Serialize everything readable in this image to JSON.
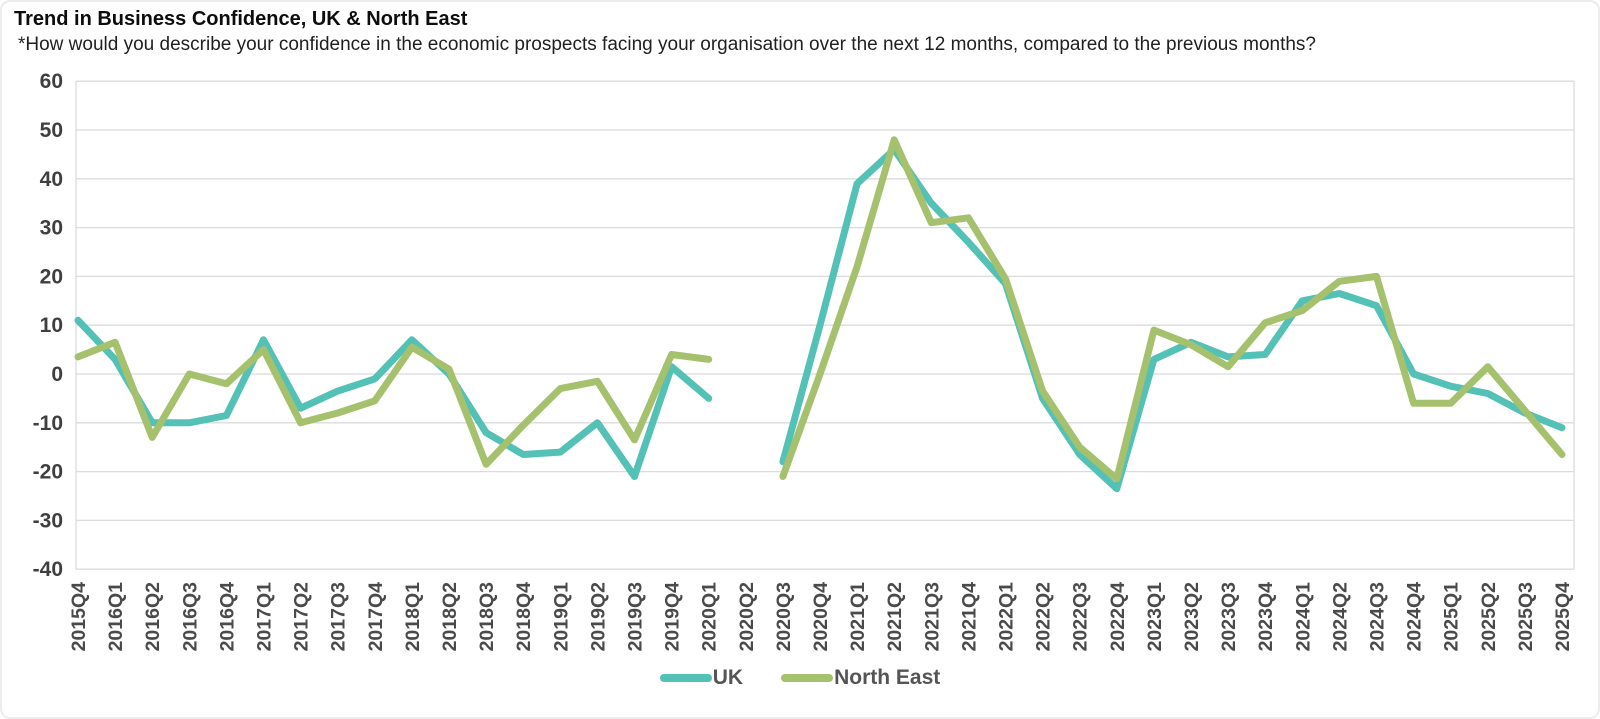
{
  "header": {
    "title": "Trend in Business Confidence, UK & North East",
    "subtitle": "*How would you describe your confidence in the economic prospects facing your organisation over the next 12 months, compared to the previous months?"
  },
  "chart_data": {
    "type": "line",
    "title": "Trend in Business Confidence, UK & North East",
    "xlabel": "",
    "ylabel": "",
    "ylim": [
      -40,
      60
    ],
    "yticks": [
      60,
      50,
      40,
      30,
      20,
      10,
      0,
      -10,
      -20,
      -30,
      -40
    ],
    "grid": true,
    "legend_position": "bottom",
    "categories": [
      "2015Q4",
      "2016Q1",
      "2016Q2",
      "2016Q3",
      "2016Q4",
      "2017Q1",
      "2017Q2",
      "2017Q3",
      "2017Q4",
      "2018Q1",
      "2018Q2",
      "2018Q3",
      "2018Q4",
      "2019Q1",
      "2019Q2",
      "2019Q3",
      "2019Q4",
      "2020Q1",
      "2020Q2",
      "2020Q3",
      "2020Q4",
      "2021Q1",
      "2021Q2",
      "2021Q3",
      "2021Q4",
      "2022Q1",
      "2022Q2",
      "2022Q3",
      "2022Q4",
      "2023Q1",
      "2023Q2",
      "2023Q3",
      "2023Q4",
      "2024Q1",
      "2024Q2",
      "2024Q3",
      "2024Q4",
      "2025Q1",
      "2025Q2",
      "2025Q3",
      "2025Q4"
    ],
    "series": [
      {
        "name": "UK",
        "color": "#53C1B5",
        "values": [
          11,
          3,
          -10,
          -10,
          -8.5,
          7,
          -7,
          -3.5,
          -1,
          7,
          0,
          -12,
          -16.5,
          -16,
          -10,
          -21,
          1.5,
          -5,
          null,
          -18,
          10,
          39,
          46,
          35,
          27,
          18.5,
          -5,
          -16.5,
          -23.5,
          3,
          6.5,
          3.5,
          4,
          15,
          16.5,
          14,
          0,
          -2.5,
          -4,
          -8,
          -11
        ]
      },
      {
        "name": "North East",
        "color": "#A6C16D",
        "values": [
          3.5,
          6.5,
          -13,
          0,
          -2,
          5,
          -10,
          -8,
          -5.5,
          5.5,
          1,
          -18.5,
          -10.5,
          -3,
          -1.5,
          -13.5,
          4,
          3,
          null,
          -21,
          0,
          22,
          48,
          31,
          32,
          19.5,
          -3.5,
          -15,
          -21.5,
          9,
          6,
          1.5,
          10.5,
          13,
          19,
          20,
          -6,
          -6,
          1.5,
          -7.5,
          -16.5
        ]
      }
    ]
  },
  "colors": {
    "grid": "#DBDBDB",
    "plot_border": "#DBDBDB",
    "y_tick_label": "#3f3f3f",
    "x_tick_label": "#4a4a4a",
    "legend_label": "#555555",
    "background": "#FFFFFF"
  }
}
